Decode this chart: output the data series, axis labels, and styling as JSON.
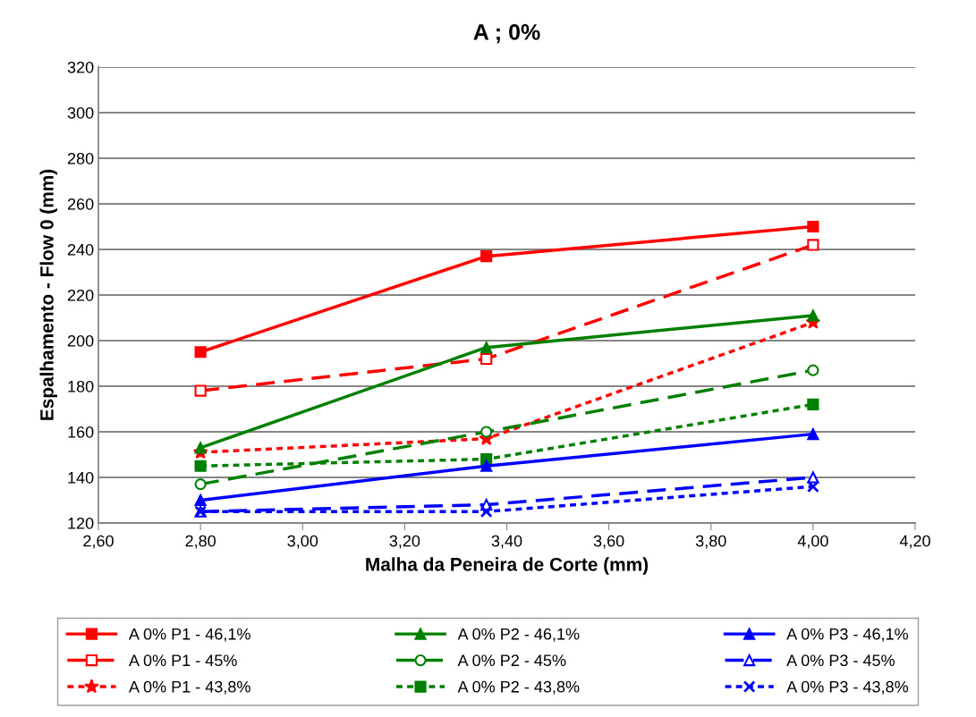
{
  "chart_data": {
    "type": "line",
    "title": "A ; 0%",
    "xlabel": "Malha da Peneira de Corte (mm)",
    "ylabel": "Espalhamento - Flow 0 (mm)",
    "x": [
      2.8,
      3.36,
      4.0
    ],
    "xlim": [
      2.6,
      4.2
    ],
    "xticks": [
      {
        "value": 2.6,
        "label": "2,60"
      },
      {
        "value": 2.8,
        "label": "2,80"
      },
      {
        "value": 3.0,
        "label": "3,00"
      },
      {
        "value": 3.2,
        "label": "3,20"
      },
      {
        "value": 3.4,
        "label": "3,40"
      },
      {
        "value": 3.6,
        "label": "3,60"
      },
      {
        "value": 3.8,
        "label": "3,80"
      },
      {
        "value": 4.0,
        "label": "4,00"
      },
      {
        "value": 4.2,
        "label": "4,20"
      }
    ],
    "ylim": [
      120,
      320
    ],
    "yticks": [
      120,
      140,
      160,
      180,
      200,
      220,
      240,
      260,
      280,
      300,
      320
    ],
    "grid": "y",
    "legend": "bottom",
    "series": [
      {
        "name": "A 0% P1 - 46,1%",
        "color": "#ff0000",
        "marker": "square",
        "line_style": "solid",
        "values": [
          195,
          237,
          250
        ]
      },
      {
        "name": "A 0% P1 - 45%",
        "color": "#ff0000",
        "marker": "square-open",
        "line_style": "dashed",
        "values": [
          178,
          192,
          242
        ]
      },
      {
        "name": "A 0% P1 - 43,8%",
        "color": "#ff0000",
        "marker": "star",
        "line_style": "dotted",
        "values": [
          151,
          157,
          208
        ]
      },
      {
        "name": "A 0% P2 - 46,1%",
        "color": "#008000",
        "marker": "triangle",
        "line_style": "solid",
        "values": [
          153,
          197,
          211
        ]
      },
      {
        "name": "A 0% P2 - 45%",
        "color": "#008000",
        "marker": "circle-open",
        "line_style": "dashed",
        "values": [
          137,
          160,
          187
        ]
      },
      {
        "name": "A 0% P2 - 43,8%",
        "color": "#008000",
        "marker": "square",
        "line_style": "dotted",
        "values": [
          145,
          148,
          172
        ]
      },
      {
        "name": "A 0% P3 - 46,1%",
        "color": "#0000ff",
        "marker": "triangle",
        "line_style": "solid",
        "values": [
          130,
          145,
          159
        ]
      },
      {
        "name": "A 0% P3 - 45%",
        "color": "#0000ff",
        "marker": "triangle-open",
        "line_style": "dashed",
        "values": [
          125,
          128,
          140
        ]
      },
      {
        "name": "A 0% P3 - 43,8%",
        "color": "#0000ff",
        "marker": "cross",
        "line_style": "dotted",
        "values": [
          125,
          125,
          136
        ]
      }
    ]
  }
}
